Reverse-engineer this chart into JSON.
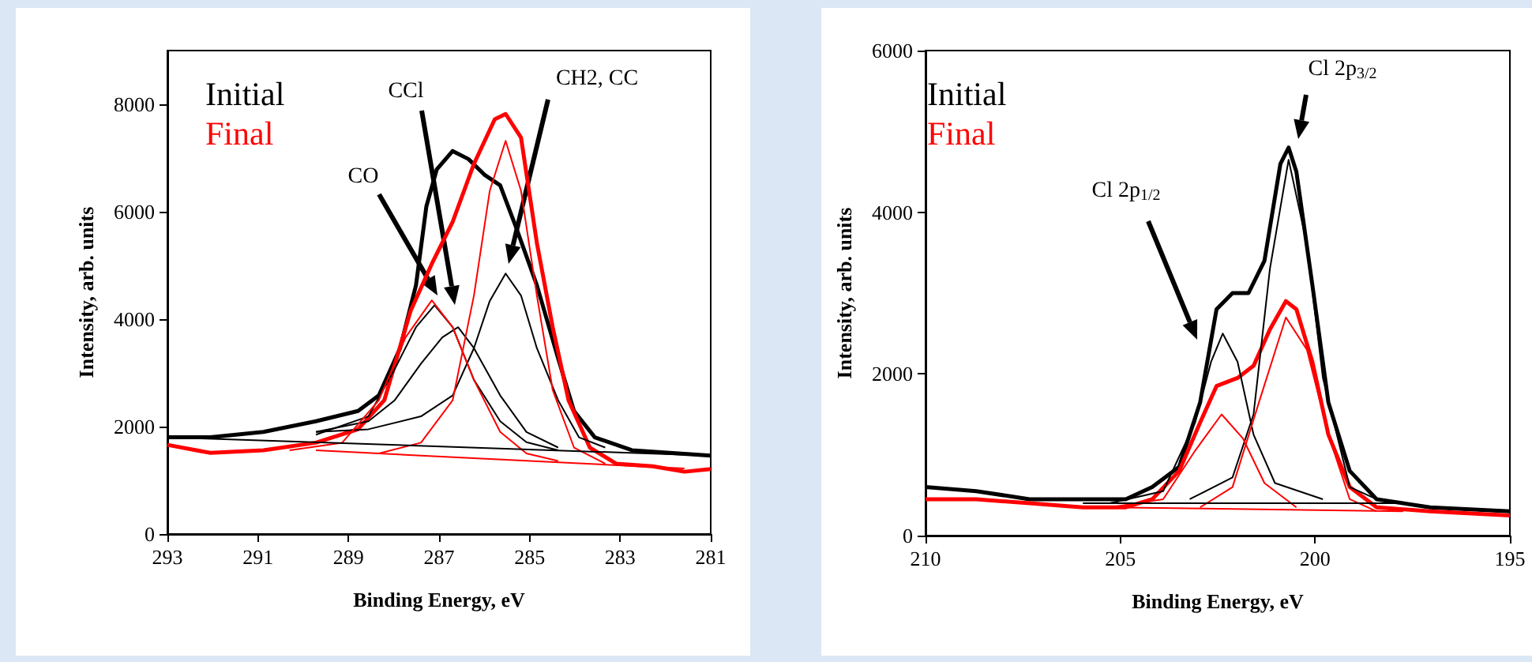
{
  "chart_data": [
    {
      "type": "line",
      "xlabel": "Binding Energy, eV",
      "ylabel": "Intensity, arb. units",
      "xlim": [
        293,
        281
      ],
      "xticks": [
        293,
        291,
        289,
        287,
        285,
        283,
        281
      ],
      "ylim": [
        0,
        9000
      ],
      "yticks": [
        0,
        2000,
        4000,
        6000,
        8000
      ],
      "legend": "top left",
      "grid": false,
      "annotations": [
        "CO",
        "CCl",
        "CH2, CC"
      ],
      "series": [
        {
          "name": "Initial",
          "color": "#000000",
          "x": [
            293,
            292.05,
            290.88,
            289.72,
            288.79,
            288.33,
            287.86,
            287.51,
            287.28,
            287.05,
            286.7,
            286.35,
            286.0,
            285.65,
            285.3,
            284.84,
            284.37,
            284.02,
            283.56,
            282.74,
            281
          ],
          "values": [
            1800,
            1800,
            1900,
            2100,
            2290,
            2580,
            3460,
            4630,
            6100,
            6790,
            7130,
            6980,
            6690,
            6490,
            5710,
            4630,
            3270,
            2290,
            1800,
            1560,
            1460
          ]
        },
        {
          "name": "Final",
          "color": "#ff0000",
          "x": [
            293,
            292.05,
            290.88,
            289.72,
            288.79,
            288.21,
            287.63,
            287.16,
            286.7,
            286.23,
            285.77,
            285.53,
            285.19,
            284.84,
            284.49,
            284.14,
            283.67,
            283.09,
            282.28,
            281.58,
            281
          ],
          "values": [
            1660,
            1510,
            1560,
            1700,
            1950,
            2490,
            4150,
            5030,
            5810,
            6890,
            7720,
            7820,
            7380,
            5420,
            3850,
            2490,
            1610,
            1310,
            1260,
            1160,
            1210
          ]
        },
        {
          "color": "#000000",
          "x": [
            289.72,
            288.56,
            287.4,
            286.7,
            286.23,
            285.88,
            285.53,
            285.19,
            284.84,
            284.37,
            283.91,
            283.33
          ],
          "values": [
            1900,
            1950,
            2190,
            2580,
            3460,
            4340,
            4850,
            4440,
            3460,
            2490,
            1800,
            1610
          ]
        },
        {
          "color": "#000000",
          "x": [
            289.72,
            288.56,
            287.98,
            287.4,
            286.93,
            286.58,
            286.23,
            285.65,
            285.07,
            284.37
          ],
          "values": [
            1900,
            2100,
            2490,
            3170,
            3660,
            3850,
            3460,
            2580,
            1900,
            1610
          ]
        },
        {
          "color": "#000000",
          "x": [
            289.72,
            288.56,
            287.98,
            287.51,
            287.1,
            286.7,
            286.23,
            285.65,
            285.07,
            284.37
          ],
          "values": [
            1850,
            2190,
            3070,
            3850,
            4260,
            3850,
            2870,
            2100,
            1710,
            1560
          ]
        },
        {
          "color": "#ff0000",
          "x": [
            290.3,
            289.14,
            288.33,
            287.74,
            287.16,
            286.7,
            286.23,
            285.65,
            285.07,
            284.37
          ],
          "values": [
            1560,
            1700,
            2490,
            3660,
            4350,
            3850,
            2870,
            1900,
            1500,
            1360
          ]
        },
        {
          "color": "#ff0000",
          "x": [
            288.33,
            287.4,
            286.7,
            286.23,
            285.88,
            285.53,
            285.19,
            284.84,
            284.49,
            284.02,
            283.33
          ],
          "values": [
            1500,
            1700,
            2490,
            4440,
            6390,
            7320,
            6390,
            4440,
            2680,
            1610,
            1310
          ]
        },
        {
          "color": "#000000",
          "x": [
            293,
            281
          ],
          "values": [
            1800,
            1460
          ]
        },
        {
          "color": "#ff0000",
          "x": [
            289.72,
            287.4,
            281.58
          ],
          "values": [
            1560,
            1460,
            1220
          ]
        }
      ]
    },
    {
      "type": "line",
      "xlabel": "Binding Energy, eV",
      "ylabel": "Intensity, arb. units",
      "xlim": [
        210,
        195
      ],
      "xticks": [
        210,
        205,
        200,
        195
      ],
      "ylim": [
        0,
        6000
      ],
      "yticks": [
        0,
        2000,
        4000,
        6000
      ],
      "legend": "top left",
      "grid": false,
      "annotations": [
        "Cl 2p$_{1/2}$",
        "Cl 2p$_{3/2}$"
      ],
      "series": [
        {
          "name": "Initial",
          "color": "#000000",
          "x": [
            210,
            208.7,
            207.33,
            205.96,
            204.86,
            204.18,
            203.49,
            202.95,
            202.53,
            202.12,
            201.71,
            201.3,
            200.89,
            200.68,
            200.48,
            200.07,
            199.66,
            199.11,
            198.42,
            197.05,
            195
          ],
          "values": [
            600,
            550,
            450,
            450,
            450,
            600,
            850,
            1650,
            2800,
            3000,
            3000,
            3400,
            4600,
            4800,
            4500,
            3100,
            1650,
            800,
            450,
            350,
            300
          ]
        },
        {
          "name": "Final",
          "color": "#ff0000",
          "x": [
            210,
            208.7,
            207.33,
            205.96,
            204.86,
            204.18,
            203.49,
            202.95,
            202.53,
            201.99,
            201.58,
            201.16,
            200.75,
            200.48,
            200.07,
            199.66,
            199.11,
            198.42,
            197.05,
            195
          ],
          "values": [
            450,
            450,
            400,
            350,
            350,
            450,
            800,
            1400,
            1850,
            1950,
            2100,
            2550,
            2900,
            2800,
            2150,
            1250,
            600,
            350,
            300,
            250
          ]
        },
        {
          "color": "#000000",
          "x": [
            205.27,
            203.9,
            203.08,
            202.67,
            202.37,
            201.99,
            201.58,
            201.03,
            199.8
          ],
          "values": [
            400,
            550,
            1400,
            2150,
            2500,
            2150,
            1250,
            650,
            450
          ]
        },
        {
          "color": "#000000",
          "x": [
            203.22,
            202.12,
            201.58,
            201.16,
            200.68,
            200.21,
            199.8,
            199.11,
            198.42
          ],
          "values": [
            450,
            720,
            1500,
            3300,
            4650,
            3600,
            1950,
            600,
            450
          ]
        },
        {
          "color": "#ff0000",
          "x": [
            205.27,
            203.9,
            203.08,
            202.4,
            201.85,
            201.3,
            200.48
          ],
          "values": [
            350,
            450,
            1050,
            1500,
            1200,
            650,
            350
          ]
        },
        {
          "color": "#ff0000",
          "x": [
            202.95,
            202.12,
            201.44,
            200.75,
            200.21,
            199.66,
            199.11,
            198.42
          ],
          "values": [
            350,
            600,
            1650,
            2700,
            2300,
            1250,
            450,
            300
          ]
        },
        {
          "color": "#000000",
          "x": [
            205.96,
            197.74
          ],
          "values": [
            400,
            400
          ]
        },
        {
          "color": "#ff0000",
          "x": [
            205.27,
            197.74
          ],
          "values": [
            350,
            300
          ]
        }
      ]
    }
  ]
}
